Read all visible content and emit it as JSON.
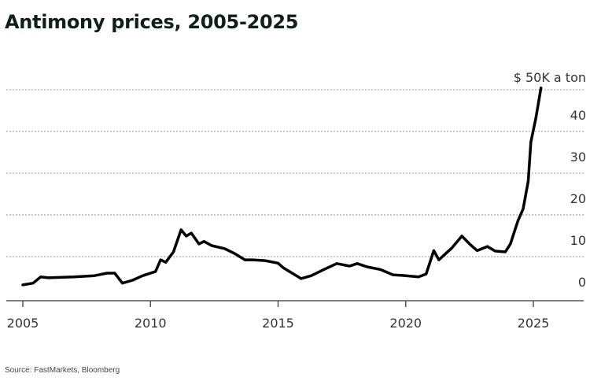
{
  "title": "Antimony prices, 2005-2025",
  "source": "Source: FastMarkets, Bloomberg",
  "chart_data": {
    "type": "line",
    "title": "Antimony prices, 2005-2025",
    "unit_label": "$ 50K a ton",
    "xlabel": "",
    "ylabel": "",
    "xlim": [
      2004.6,
      2026.4
    ],
    "ylim": [
      0,
      50
    ],
    "x_ticks": [
      "2005",
      "2010",
      "2015",
      "2020",
      "2025"
    ],
    "y_ticks": [
      "0",
      "10",
      "20",
      "30",
      "40"
    ],
    "grid": "horizontal dotted",
    "line_color": "#000000",
    "series": [
      {
        "x": [
          2005.0,
          2005.4,
          2005.7,
          2006.0,
          2007.0,
          2007.8,
          2008.3,
          2008.6,
          2008.9,
          2009.3,
          2009.7,
          2010.2,
          2010.4,
          2010.6,
          2010.9,
          2011.2,
          2011.4,
          2011.6,
          2011.9,
          2012.1,
          2012.4,
          2012.9,
          2013.3,
          2013.7,
          2014.0,
          2014.5,
          2015.0,
          2015.2,
          2015.5,
          2015.9,
          2016.3,
          2016.8,
          2017.3,
          2017.8,
          2018.1,
          2018.5,
          2019.0,
          2019.5,
          2020.0,
          2020.5,
          2020.8,
          2021.1,
          2021.3,
          2021.8,
          2022.2,
          2022.5,
          2022.8,
          2023.2,
          2023.5,
          2023.9,
          2024.1,
          2024.4,
          2024.6,
          2024.8,
          2024.9,
          2025.1,
          2025.3
        ],
        "y": [
          3.8,
          4.2,
          5.7,
          5.5,
          5.7,
          6.0,
          6.6,
          6.6,
          4.2,
          4.9,
          6.0,
          7.0,
          9.8,
          9.2,
          11.7,
          17.0,
          15.5,
          16.2,
          13.6,
          14.2,
          13.2,
          12.5,
          11.3,
          9.8,
          9.8,
          9.6,
          9.0,
          7.9,
          6.8,
          5.3,
          6.0,
          7.5,
          8.9,
          8.3,
          8.9,
          8.1,
          7.5,
          6.2,
          6.0,
          5.7,
          6.4,
          12.0,
          9.8,
          12.6,
          15.5,
          13.6,
          12.0,
          13.0,
          11.9,
          11.7,
          13.6,
          19.2,
          22.0,
          28.7,
          38.0,
          43.8,
          51.0
        ]
      }
    ]
  }
}
